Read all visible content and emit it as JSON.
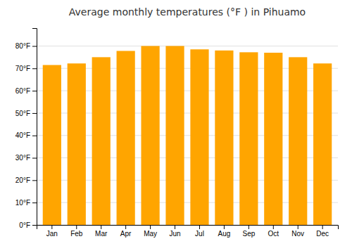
{
  "chart_data": {
    "type": "bar",
    "title": "Average monthly temperatures (°F ) in Pihuamo",
    "categories": [
      "Jan",
      "Feb",
      "Mar",
      "Apr",
      "May",
      "Jun",
      "Jul",
      "Aug",
      "Sep",
      "Oct",
      "Nov",
      "Dec"
    ],
    "values": [
      71.5,
      72.2,
      75.0,
      77.8,
      80.0,
      80.0,
      78.5,
      78.0,
      77.2,
      77.0,
      75.0,
      72.2
    ],
    "color": "#FFA500",
    "ylim": [
      0,
      88
    ],
    "yticks": [
      {
        "value": 0,
        "label": "0°F"
      },
      {
        "value": 10,
        "label": "10°F"
      },
      {
        "value": 20,
        "label": "20°F"
      },
      {
        "value": 30,
        "label": "30°F"
      },
      {
        "value": 40,
        "label": "40°F"
      },
      {
        "value": 50,
        "label": "50°F"
      },
      {
        "value": 60,
        "label": "60°F"
      },
      {
        "value": 70,
        "label": "70°F"
      },
      {
        "value": 80,
        "label": "80°F"
      }
    ],
    "grid": true
  }
}
